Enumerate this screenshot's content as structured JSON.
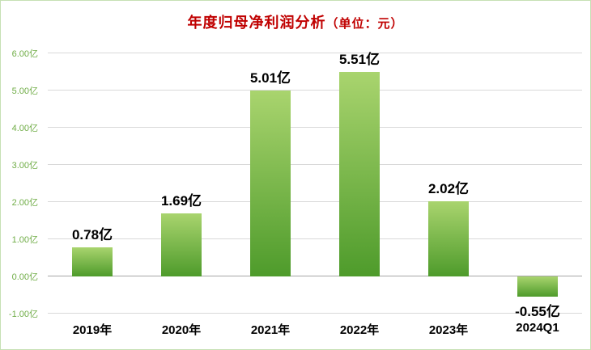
{
  "title": {
    "main": "年度归母净利润分析",
    "unit": "（单位：元）"
  },
  "chart_data": {
    "type": "bar",
    "title": "年度归母净利润分析（单位：元）",
    "categories": [
      "2019年",
      "2020年",
      "2021年",
      "2022年",
      "2023年",
      "2024Q1"
    ],
    "values": [
      0.78,
      1.69,
      5.01,
      5.51,
      2.02,
      -0.55
    ],
    "bar_labels": [
      "0.78亿",
      "1.69亿",
      "5.01亿",
      "5.51亿",
      "2.02亿",
      "-0.55亿"
    ],
    "xlabel": "",
    "ylabel": "",
    "ylim": [
      -1,
      6
    ],
    "yticks": [
      -1,
      0,
      1,
      2,
      3,
      4,
      5,
      6
    ],
    "ytick_labels": [
      "-1.00亿",
      "0.00亿",
      "1.00亿",
      "2.00亿",
      "3.00亿",
      "4.00亿",
      "5.00亿",
      "6.00亿"
    ],
    "grid": true,
    "legend": false,
    "colors": {
      "bar_gradient_top": "#a9d46e",
      "bar_gradient_bottom": "#4e9b2b",
      "title": "#c00000",
      "ytick": "#70ad47",
      "xtick": "#000000",
      "gridline": "#d9d9d9",
      "zero_line": "#a6a6a6",
      "border": "#c6e0b4"
    }
  }
}
